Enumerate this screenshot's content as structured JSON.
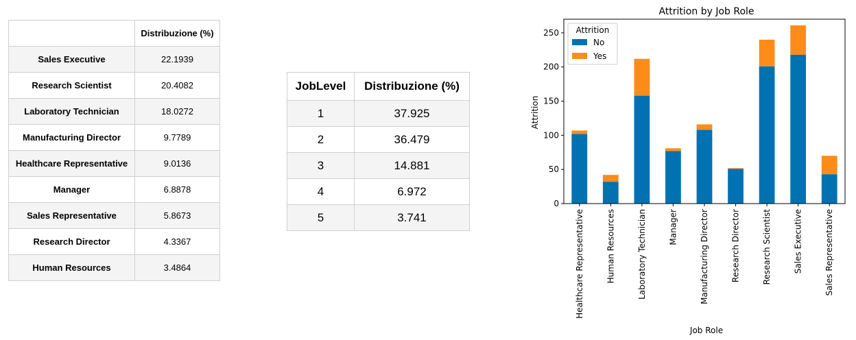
{
  "role_table": {
    "header": [
      "",
      "Distribuzione (%)"
    ],
    "rows": [
      [
        "Sales Executive",
        "22.1939"
      ],
      [
        "Research Scientist",
        "20.4082"
      ],
      [
        "Laboratory Technician",
        "18.0272"
      ],
      [
        "Manufacturing Director",
        "9.7789"
      ],
      [
        "Healthcare Representative",
        "9.0136"
      ],
      [
        "Manager",
        "6.8878"
      ],
      [
        "Sales Representative",
        "5.8673"
      ],
      [
        "Research Director",
        "4.3367"
      ],
      [
        "Human Resources",
        "3.4864"
      ]
    ]
  },
  "level_table": {
    "header": [
      "JobLevel",
      "Distribuzione (%)"
    ],
    "rows": [
      [
        "1",
        "37.925"
      ],
      [
        "2",
        "36.479"
      ],
      [
        "3",
        "14.881"
      ],
      [
        "4",
        "6.972"
      ],
      [
        "5",
        "3.741"
      ]
    ]
  },
  "chart_data": {
    "type": "bar",
    "stacked": true,
    "title": "Attrition by Job Role",
    "xlabel": "Job Role",
    "ylabel": "Attrition",
    "categories": [
      "Healthcare Representative",
      "Human Resources",
      "Laboratory Technician",
      "Manager",
      "Manufacturing Director",
      "Research Director",
      "Research Scientist",
      "Sales Executive",
      "Sales Representative"
    ],
    "series": [
      {
        "name": "No",
        "values": [
          102,
          32,
          158,
          77,
          108,
          51,
          201,
          218,
          43
        ],
        "color": "#0072b2"
      },
      {
        "name": "Yes",
        "values": [
          5,
          10,
          54,
          4,
          8,
          1,
          39,
          43,
          27
        ],
        "color": "#ff8c19"
      }
    ],
    "ylim": [
      0,
      270
    ],
    "yticks": [
      0,
      50,
      100,
      150,
      200,
      250
    ],
    "legend_title": "Attrition",
    "legend_position": "top-left",
    "grid": false
  }
}
